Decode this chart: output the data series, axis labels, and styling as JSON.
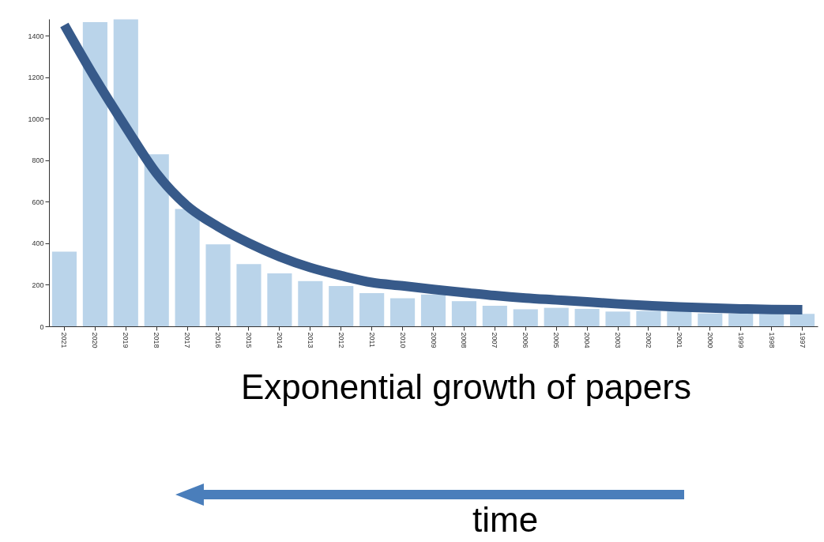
{
  "chart_data": {
    "type": "bar",
    "categories": [
      "2021",
      "2020",
      "2019",
      "2018",
      "2017",
      "2016",
      "2015",
      "2014",
      "2013",
      "2012",
      "2011",
      "2010",
      "2009",
      "2008",
      "2007",
      "2006",
      "2005",
      "2004",
      "2003",
      "2002",
      "2001",
      "2000",
      "1999",
      "1998",
      "1997"
    ],
    "series": [
      {
        "color": "#bad4ea",
        "values": [
          360,
          1465,
          1478,
          828,
          565,
          395,
          300,
          255,
          218,
          194,
          160,
          135,
          153,
          121,
          99,
          82,
          89,
          84,
          71,
          74,
          72,
          62,
          61,
          60,
          60
        ]
      },
      {
        "type": "line",
        "color": "#375a8a",
        "values": [
          1451,
          1195,
          959,
          736,
          579,
          480,
          401,
          335,
          283,
          244,
          211,
          195,
          178,
          163,
          148,
          136,
          127,
          118,
          108,
          100,
          93,
          88,
          84,
          81,
          80
        ]
      }
    ],
    "ylim": [
      0,
      1480
    ],
    "yticks": [
      0,
      200,
      400,
      600,
      800,
      1000,
      1200,
      1400
    ],
    "grid": false,
    "annotations": [
      "Exponential growth of papers",
      "time"
    ]
  }
}
